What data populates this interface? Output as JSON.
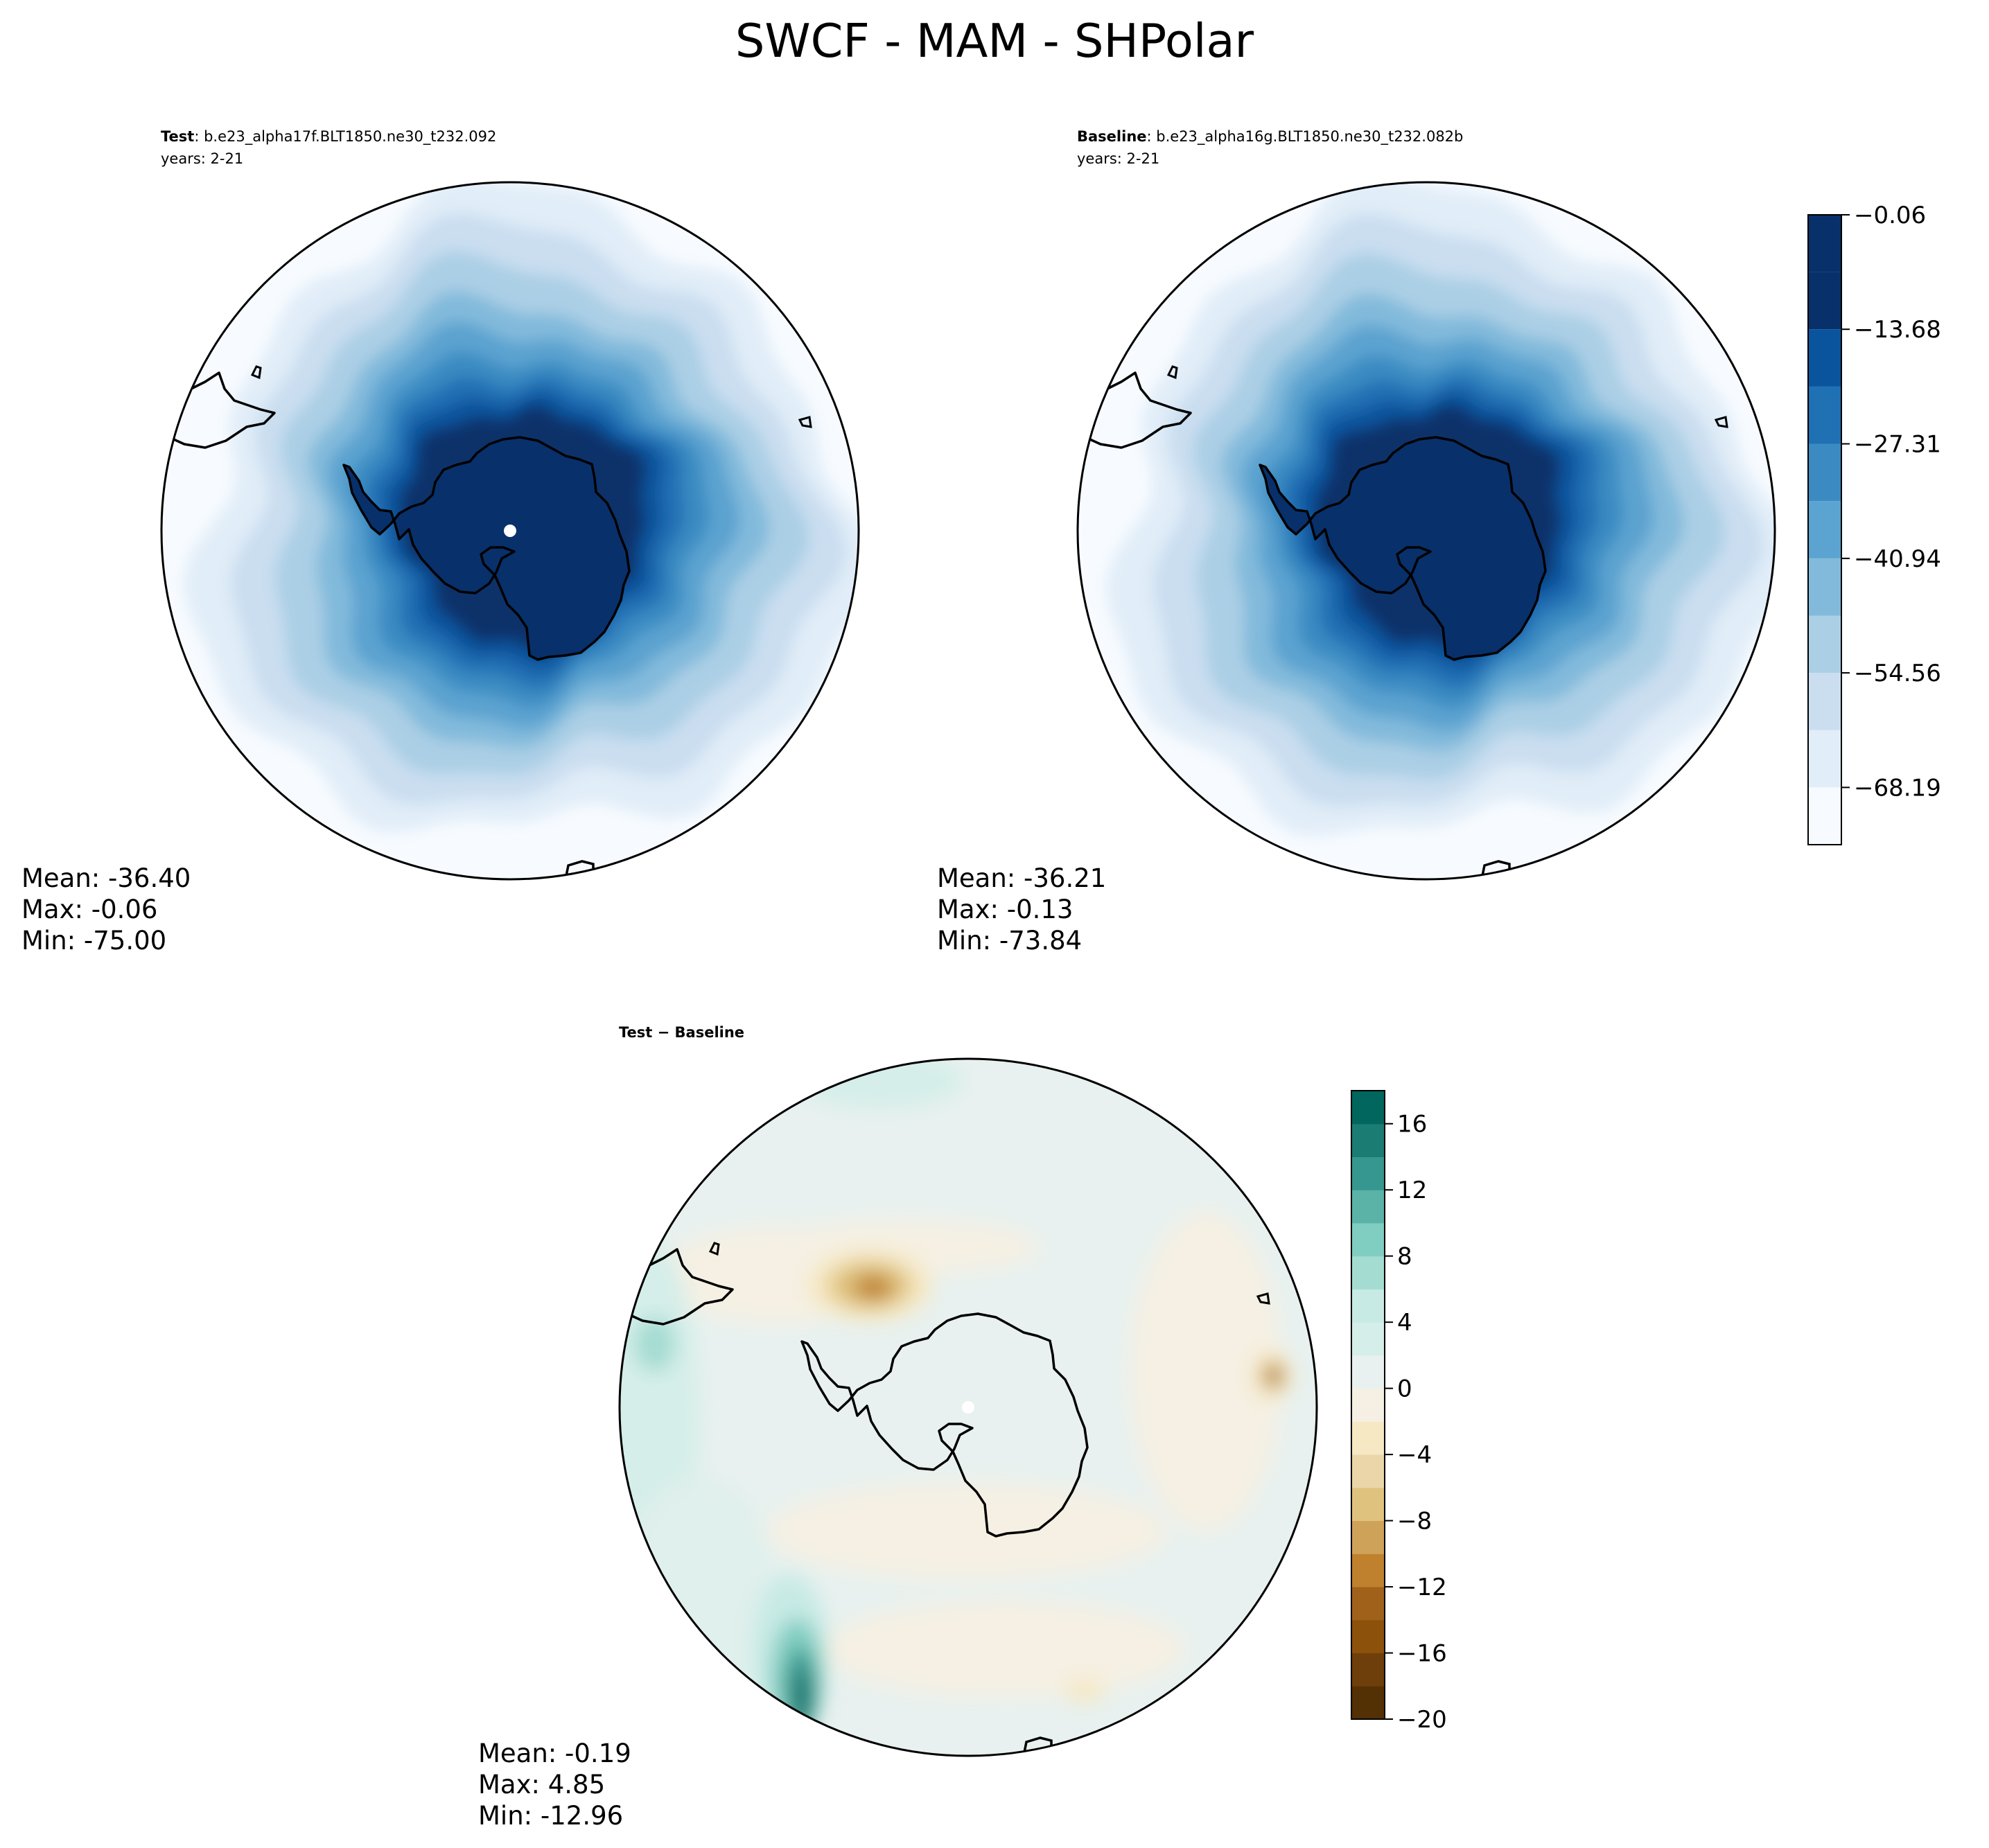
{
  "figure": {
    "title": "SWCF - MAM - SHPolar"
  },
  "chart_data": [
    {
      "type": "heatmap",
      "projection": "south-polar-stereographic",
      "panel": "test",
      "label_bold": "Test",
      "label_rest": ": b.e23_alpha17f.BLT1850.ne30_t232.092",
      "years": "years: 2-21",
      "stats": {
        "mean": "Mean: -36.40",
        "max": "Max: -0.06",
        "min": "Min: -75.00"
      },
      "colormap": "Blues_r",
      "rings_fromcenter": [
        -0.06,
        -6.9,
        -13.68,
        -20.5,
        -27.31,
        -34.1,
        -40.94,
        -47.8,
        -54.56,
        -61.4,
        -68.19
      ]
    },
    {
      "type": "heatmap",
      "projection": "south-polar-stereographic",
      "panel": "baseline",
      "label_bold": "Baseline",
      "label_rest": ": b.e23_alpha16g.BLT1850.ne30_t232.082b",
      "years": "years: 2-21",
      "stats": {
        "mean": "Mean: -36.21",
        "max": "Max: -0.13",
        "min": "Min: -73.84"
      },
      "colormap": "Blues_r",
      "colorbar": {
        "ticks": [
          -0.06,
          -13.68,
          -27.31,
          -40.94,
          -54.56,
          -68.19
        ],
        "tick_labels": [
          "−0.06",
          "−13.68",
          "−27.31",
          "−40.94",
          "−54.56",
          "−68.19"
        ],
        "levels": [
          -75.0,
          -68.19,
          -61.37,
          -54.56,
          -47.75,
          -40.94,
          -34.12,
          -27.31,
          -20.5,
          -13.68,
          -6.87,
          -0.06
        ],
        "colors": [
          "#f7fbff",
          "#e1edf8",
          "#cadef0",
          "#abcfe5",
          "#82badb",
          "#5ba3d0",
          "#3b8bc2",
          "#2070b4",
          "#0a549e",
          "#08306b",
          "#08306b"
        ]
      }
    },
    {
      "type": "heatmap",
      "projection": "south-polar-stereographic",
      "panel": "difference",
      "label": "Test − Baseline",
      "stats": {
        "mean": "Mean: -0.19",
        "max": "Max:  4.85",
        "min": "Min: -12.96"
      },
      "colormap": "BrBG",
      "colorbar": {
        "ticks": [
          -20,
          -16,
          -12,
          -8,
          -4,
          0,
          4,
          8,
          12,
          16
        ],
        "tick_labels": [
          "−20",
          "−16",
          "−12",
          "−8",
          "−4",
          "0",
          "4",
          "8",
          "12",
          "16"
        ],
        "range": [
          -20,
          18
        ],
        "step": 2,
        "colors": [
          "#543005",
          "#6e3e0b",
          "#8c510a",
          "#a0611a",
          "#bf812d",
          "#cfa25a",
          "#dfc27d",
          "#ead6a8",
          "#f6e8c3",
          "#f5f0e3",
          "#e8f1ef",
          "#d5eee9",
          "#c7eae5",
          "#a4dcd2",
          "#80cdc1",
          "#5bb2a6",
          "#35978f",
          "#1b7c74",
          "#01665e",
          "#003c30"
        ]
      }
    }
  ],
  "colors": {
    "land_fill_test": "#08306b",
    "land_fill_diff": "#e8f1ef",
    "outline": "#000000"
  }
}
